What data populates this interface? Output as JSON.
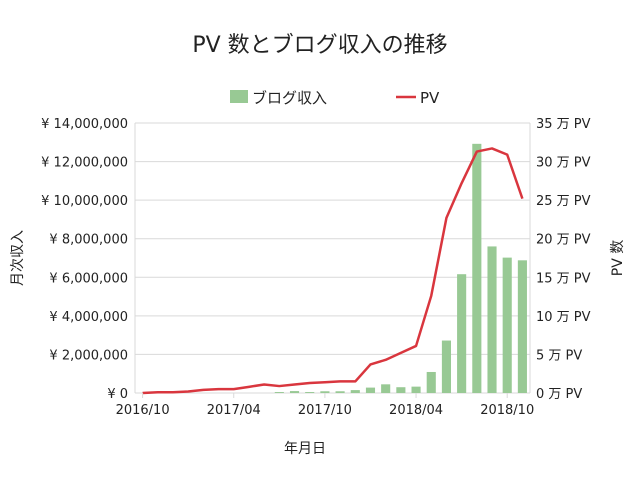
{
  "chart_data": {
    "type": "bar+line",
    "title": "PV 数とブログ収入の推移",
    "xlabel": "年月日",
    "ylabel_left": "月次収入",
    "ylabel_right": "PV 数",
    "categories": [
      "2016/10",
      "2016/11",
      "2016/12",
      "2017/01",
      "2017/02",
      "2017/03",
      "2017/04",
      "2017/05",
      "2017/06",
      "2017/07",
      "2017/08",
      "2017/09",
      "2017/10",
      "2017/11",
      "2017/12",
      "2018/01",
      "2018/02",
      "2018/03",
      "2018/04",
      "2018/05",
      "2018/06",
      "2018/07",
      "2018/08",
      "2018/09",
      "2018/10",
      "2018/11"
    ],
    "x_tick_labels": [
      "2016/10",
      "2017/04",
      "2017/10",
      "2018/04",
      "2018/10"
    ],
    "left_axis": {
      "ylim": [
        0,
        14000000
      ],
      "ticks": [
        "¥ 0",
        "¥ 2,000,000",
        "¥ 4,000,000",
        "¥ 6,000,000",
        "¥ 8,000,000",
        "¥ 10,000,000",
        "¥ 12,000,000",
        "¥ 14,000,000"
      ]
    },
    "right_axis": {
      "ylim": [
        0,
        35
      ],
      "unit": "万 PV",
      "ticks": [
        "0 万 PV",
        "5 万 PV",
        "10 万 PV",
        "15 万 PV",
        "20 万 PV",
        "25 万 PV",
        "30 万 PV",
        "35 万 PV"
      ]
    },
    "grid": true,
    "legend_position": "top",
    "series": [
      {
        "name": "ブログ収入",
        "type": "bar",
        "axis": "left",
        "color": "#98c994",
        "values": [
          0,
          0,
          0,
          0,
          0,
          0,
          0,
          0,
          0,
          50000,
          100000,
          50000,
          90000,
          90000,
          150000,
          280000,
          450000,
          300000,
          330000,
          1090000,
          2720000,
          6160000,
          12920000,
          7600000,
          7020000,
          6880000
        ]
      },
      {
        "name": "PV",
        "type": "line",
        "axis": "right",
        "color": "#d9363e",
        "values": [
          0,
          0.1,
          0.1,
          0.2,
          0.4,
          0.5,
          0.5,
          0.8,
          1.1,
          0.9,
          1.1,
          1.3,
          1.4,
          1.5,
          1.5,
          3.7,
          4.3,
          5.2,
          6.1,
          12.6,
          22.7,
          27.2,
          31.3,
          31.7,
          30.9,
          25.2
        ]
      }
    ]
  }
}
